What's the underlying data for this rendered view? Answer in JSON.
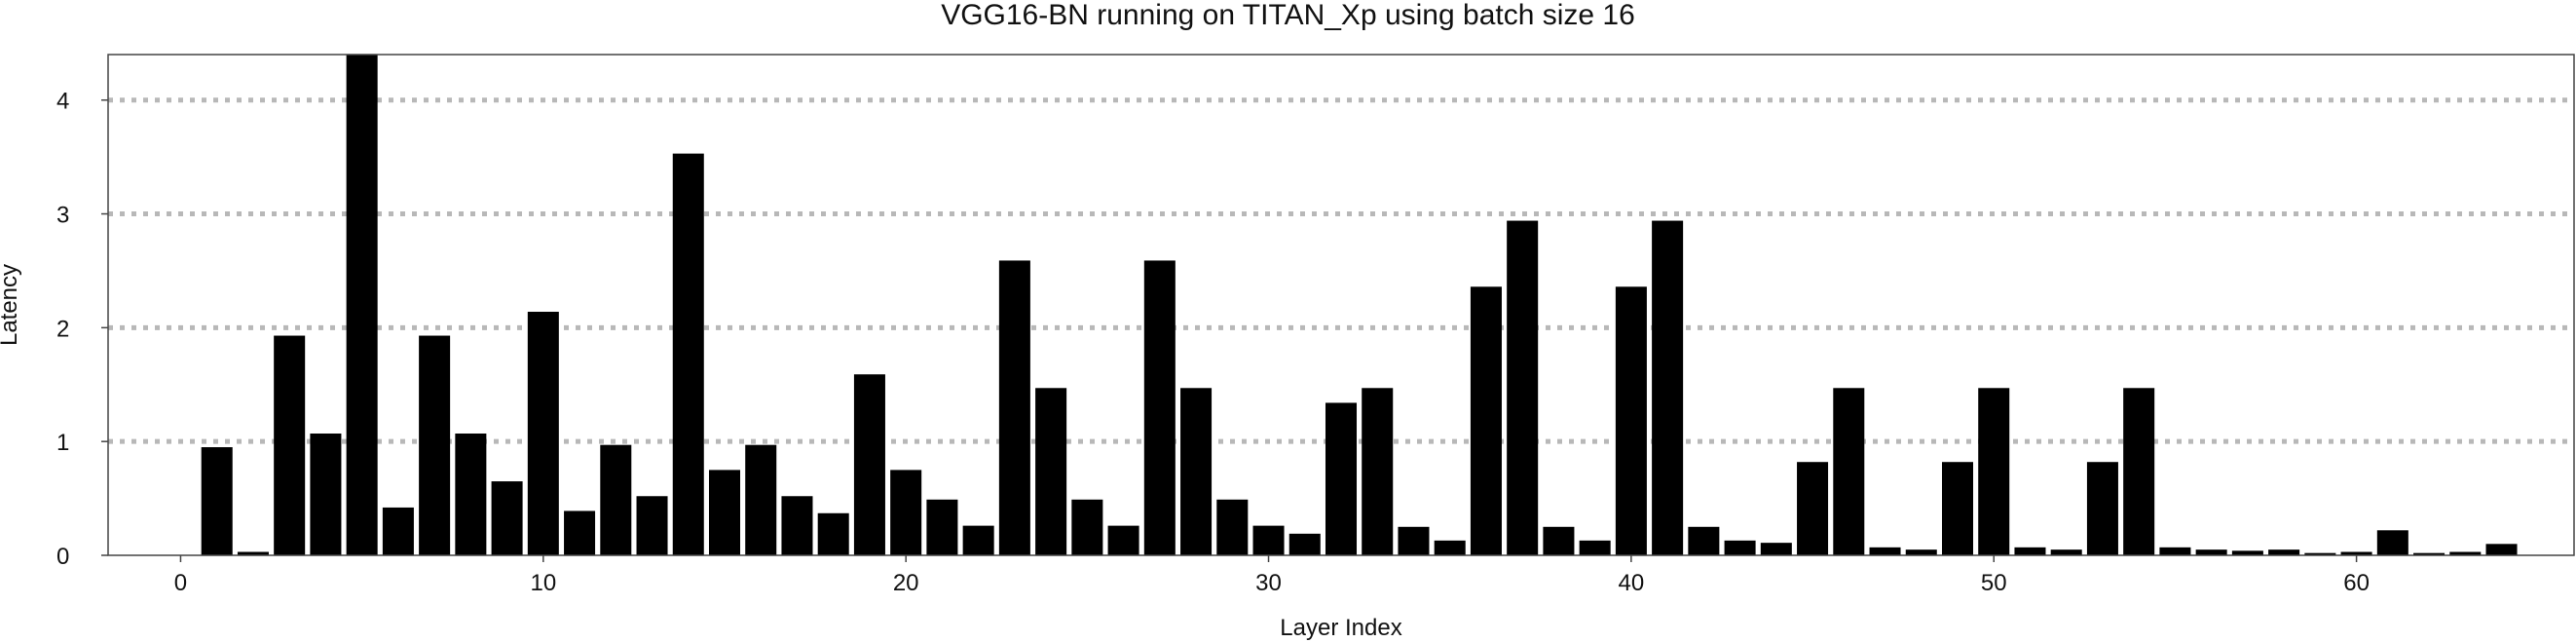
{
  "chart_data": {
    "type": "bar",
    "title": "VGG16-BN running on TITAN_Xp using batch size 16",
    "xlabel": "Layer Index",
    "ylabel": "Latency",
    "xlim": [
      -2,
      66
    ],
    "ylim": [
      0,
      4.4
    ],
    "xticks": [
      0,
      10,
      20,
      30,
      40,
      50,
      60
    ],
    "yticks": [
      0,
      1,
      2,
      3,
      4
    ],
    "grid": "horizontal dotted",
    "colors": {
      "bar": "#000000",
      "grid": "#b8b8b8",
      "frame": "#444444"
    },
    "x": [
      1,
      2,
      3,
      4,
      5,
      6,
      7,
      8,
      9,
      10,
      11,
      12,
      13,
      14,
      15,
      16,
      17,
      18,
      19,
      20,
      21,
      22,
      23,
      24,
      25,
      26,
      27,
      28,
      29,
      30,
      31,
      32,
      33,
      34,
      35,
      36,
      37,
      38,
      39,
      40,
      41,
      42,
      43,
      44,
      45,
      46,
      47,
      48,
      49,
      50,
      51,
      52,
      53,
      54,
      55,
      56,
      57,
      58,
      59,
      60,
      61,
      62,
      63,
      64,
      65
    ],
    "values": [
      0.95,
      0.03,
      1.93,
      1.07,
      4.4,
      0.42,
      1.93,
      1.07,
      0.65,
      2.14,
      0.39,
      0.97,
      0.52,
      3.53,
      0.75,
      0.97,
      0.52,
      0.37,
      1.59,
      0.75,
      0.49,
      0.26,
      2.59,
      1.47,
      0.49,
      0.26,
      2.59,
      1.47,
      0.49,
      0.26,
      0.19,
      1.34,
      1.47,
      0.25,
      0.13,
      2.36,
      2.94,
      0.25,
      0.13,
      2.36,
      2.94,
      0.25,
      0.13,
      0.11,
      0.82,
      1.47,
      0.07,
      0.05,
      0.82,
      1.47,
      0.07,
      0.05,
      0.82,
      1.47,
      0.07,
      0.05,
      0.04,
      0.05,
      0.02,
      0.03,
      0.22,
      0.02,
      0.03,
      0.1,
      0.0
    ]
  }
}
